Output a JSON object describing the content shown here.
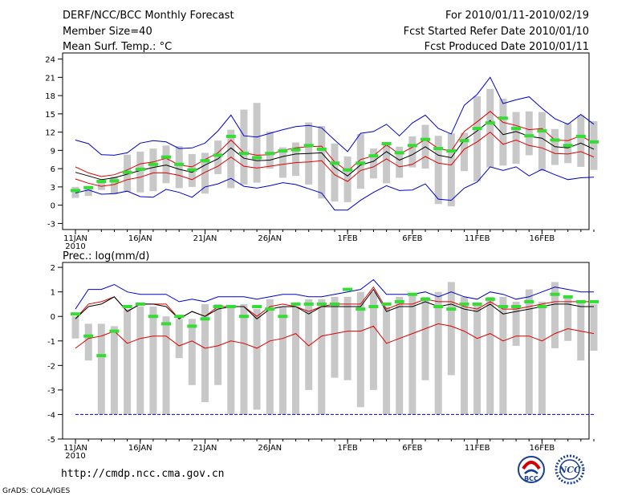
{
  "header": {
    "title": "DERF/NCC/BCC Monthly Forecast",
    "member_size": "Member Size=40",
    "variable": "Mean Surf. Temp.: °C",
    "period": "For 2010/01/11-2010/02/19",
    "fcst_started": "Fcst Started Refer Date 2010/01/10",
    "fcst_produced": "Fcst Produced Date 2010/01/11"
  },
  "footer": {
    "url": "http://cmdp.ncc.cma.gov.cn",
    "grads": "GrADS: COLA/IGES",
    "logo_bcc": "BCC",
    "logo_ncc": "NCC"
  },
  "colors": {
    "mean": "#000000",
    "spread": "#dd0000",
    "envelope": "#0000cc",
    "member_box": "#c8c8c8",
    "observed": "#33dd33"
  },
  "chart_data": [
    {
      "type": "line",
      "title": "Mean Surf. Temp.: °C",
      "x_tick_labels": [
        "11JAN",
        "16JAN",
        "21JAN",
        "26JAN",
        "1FEB",
        "6FEB",
        "11FEB",
        "16FEB"
      ],
      "x_tick_days": [
        0,
        5,
        10,
        15,
        21,
        26,
        31,
        36
      ],
      "year_label": "2010",
      "ylim": [
        -4,
        25
      ],
      "yticks": [
        -3,
        0,
        3,
        6,
        9,
        12,
        15,
        18,
        21,
        24
      ],
      "ytick_labels": [
        "-3",
        "0",
        "3",
        "6",
        "9",
        "12",
        "15",
        "18",
        "21",
        "24"
      ],
      "series": [
        {
          "name": "ensemble max",
          "values": [
            10.7,
            10.1,
            8.3,
            8.2,
            8.6,
            10.2,
            10.6,
            10.4,
            9.3,
            9.4,
            10.2,
            12.2,
            14.8,
            11.4,
            11.2,
            11.8,
            12.4,
            12.9,
            13.1,
            12.7,
            10.7,
            8.8,
            11.8,
            12.1,
            13.3,
            11.4,
            13.5,
            14.8,
            12.6,
            11.7,
            16.4,
            18.2,
            21.0,
            16.7,
            17.3,
            17.8,
            15.9,
            14.2,
            13.3,
            14.9,
            13.3
          ]
        },
        {
          "name": "mean + spread",
          "values": [
            6.3,
            5.3,
            4.7,
            5.0,
            5.8,
            6.8,
            7.1,
            7.7,
            6.6,
            6.3,
            7.5,
            8.6,
            10.7,
            8.6,
            8.2,
            8.3,
            9.0,
            9.4,
            9.6,
            9.7,
            7.1,
            5.6,
            7.5,
            8.1,
            9.9,
            8.4,
            9.5,
            10.8,
            9.3,
            8.9,
            12.1,
            13.7,
            15.4,
            13.6,
            13.1,
            12.4,
            12.6,
            10.7,
            10.6,
            11.4,
            10.2
          ]
        },
        {
          "name": "ensemble mean",
          "values": [
            5.4,
            4.8,
            4.2,
            4.5,
            5.1,
            5.7,
            6.2,
            6.6,
            5.9,
            5.4,
            6.6,
            7.6,
            9.4,
            7.7,
            7.3,
            7.4,
            8.0,
            8.4,
            8.5,
            8.6,
            6.2,
            4.8,
            6.6,
            7.2,
            8.8,
            7.4,
            8.3,
            9.6,
            8.2,
            7.8,
            10.7,
            12.2,
            13.9,
            11.6,
            12.1,
            11.3,
            11.0,
            9.6,
            9.4,
            10.2,
            9.2
          ]
        },
        {
          "name": "mean - spread",
          "values": [
            4.3,
            3.6,
            3.1,
            3.4,
            4.2,
            4.6,
            5.3,
            5.3,
            4.9,
            4.2,
            5.4,
            6.4,
            7.9,
            6.4,
            6.1,
            6.4,
            6.7,
            7.0,
            7.1,
            7.3,
            5.0,
            3.9,
            5.7,
            6.3,
            7.6,
            6.3,
            6.7,
            8.0,
            6.9,
            6.6,
            9.2,
            10.4,
            12.0,
            10.0,
            10.7,
            9.8,
            9.4,
            8.5,
            8.4,
            8.8,
            7.9
          ]
        },
        {
          "name": "ensemble min",
          "values": [
            2.0,
            2.5,
            1.8,
            1.9,
            2.3,
            1.4,
            1.3,
            2.6,
            2.1,
            1.3,
            3.0,
            3.5,
            4.4,
            3.1,
            2.8,
            3.2,
            3.7,
            3.4,
            2.7,
            2.0,
            -0.8,
            -0.8,
            0.8,
            2.1,
            3.2,
            2.4,
            2.5,
            3.5,
            1.0,
            0.8,
            2.8,
            3.8,
            6.3,
            5.7,
            6.3,
            4.8,
            5.9,
            5.0,
            4.2,
            4.5,
            4.6
          ]
        }
      ],
      "member_boxes": {
        "low": [
          1.2,
          1.5,
          2.5,
          1.8,
          2.2,
          2.1,
          2.3,
          3.6,
          2.8,
          3.0,
          1.9,
          5.1,
          2.8,
          3.4,
          3.7,
          6.0,
          4.5,
          4.8,
          3.4,
          1.1,
          0.6,
          0.5,
          2.7,
          4.4,
          3.6,
          4.5,
          6.2,
          6.0,
          0.2,
          -0.2,
          5.6,
          3.9,
          6.2,
          6.5,
          6.8,
          8.2,
          5.6,
          6.6,
          6.9,
          6.3,
          5.8
        ],
        "high": [
          3.0,
          3.1,
          4.2,
          4.7,
          8.3,
          8.8,
          9.3,
          9.8,
          9.7,
          8.4,
          8.6,
          10.6,
          12.4,
          15.7,
          16.8,
          12.1,
          9.5,
          10.3,
          13.6,
          13.0,
          10.1,
          8.0,
          11.7,
          9.3,
          10.2,
          9.6,
          11.3,
          13.2,
          11.4,
          11.8,
          11.9,
          17.9,
          19.1,
          17.5,
          15.3,
          15.4,
          15.3,
          12.5,
          13.5,
          14.8,
          13.8
        ]
      },
      "observed": [
        2.4,
        2.9,
        3.9,
        4.0,
        5.4,
        5.9,
        6.7,
        7.9,
        6.7,
        5.8,
        7.3,
        8.2,
        11.3,
        8.5,
        7.8,
        8.5,
        8.9,
        9.1,
        9.8,
        9.2,
        6.9,
        5.8,
        6.9,
        8.1,
        10.1,
        8.6,
        9.8,
        10.8,
        9.3,
        8.9,
        10.6,
        12.6,
        13.5,
        14.3,
        12.6,
        11.4,
        12.2,
        10.7,
        9.8,
        11.3,
        10.4
      ]
    },
    {
      "type": "line",
      "title": "Prec.: log(mm/d)",
      "x_tick_labels": [
        "11JAN",
        "16JAN",
        "21JAN",
        "26JAN",
        "1FEB",
        "6FEB",
        "11FEB",
        "16FEB"
      ],
      "x_tick_days": [
        0,
        5,
        10,
        15,
        21,
        26,
        31,
        36
      ],
      "year_label": "2010",
      "ylim": [
        -5,
        2.2
      ],
      "yticks": [
        -5,
        -4,
        -3,
        -2,
        -1,
        0,
        1,
        2
      ],
      "ytick_labels": [
        "-5",
        "-4",
        "-3",
        "-2",
        "-1",
        "0",
        "1",
        "2"
      ],
      "series": [
        {
          "name": "ensemble max",
          "values": [
            0.3,
            1.1,
            1.1,
            1.3,
            1.0,
            0.9,
            0.9,
            0.9,
            0.6,
            0.7,
            0.6,
            0.8,
            0.8,
            0.8,
            0.7,
            0.8,
            0.9,
            0.9,
            0.8,
            0.8,
            0.9,
            1.0,
            1.1,
            1.5,
            0.9,
            0.9,
            0.9,
            1.0,
            0.8,
            1.0,
            0.8,
            0.7,
            1.0,
            0.9,
            0.7,
            0.8,
            1.0,
            1.2,
            1.1,
            1.0,
            1.0
          ]
        },
        {
          "name": "mean + spread",
          "values": [
            -0.1,
            0.5,
            0.6,
            0.8,
            0.2,
            0.5,
            0.5,
            0.5,
            -0.1,
            0.2,
            0.0,
            0.4,
            0.4,
            0.4,
            0.0,
            0.4,
            0.5,
            0.4,
            0.2,
            0.4,
            0.5,
            0.5,
            0.5,
            1.2,
            0.3,
            0.5,
            0.5,
            0.7,
            0.6,
            0.6,
            0.4,
            0.3,
            0.6,
            0.3,
            0.3,
            0.4,
            0.5,
            0.6,
            0.6,
            0.6,
            0.6
          ]
        },
        {
          "name": "ensemble mean",
          "values": [
            -0.1,
            0.4,
            0.5,
            0.8,
            0.2,
            0.5,
            0.5,
            0.4,
            -0.1,
            0.2,
            0.0,
            0.3,
            0.4,
            0.4,
            -0.1,
            0.3,
            0.4,
            0.4,
            0.1,
            0.4,
            0.4,
            0.4,
            0.4,
            1.1,
            0.2,
            0.4,
            0.4,
            0.6,
            0.4,
            0.5,
            0.3,
            0.2,
            0.5,
            0.1,
            0.2,
            0.3,
            0.4,
            0.5,
            0.5,
            0.4,
            0.4
          ]
        },
        {
          "name": "mean - spread",
          "values": [
            -1.3,
            -0.9,
            -0.8,
            -0.6,
            -1.1,
            -0.9,
            -0.8,
            -0.8,
            -1.2,
            -1.0,
            -1.3,
            -1.2,
            -1.0,
            -1.1,
            -1.3,
            -1.0,
            -0.9,
            -0.7,
            -1.2,
            -0.8,
            -0.7,
            -0.6,
            -0.6,
            -0.4,
            -1.1,
            -0.9,
            -0.7,
            -0.5,
            -0.3,
            -0.4,
            -0.6,
            -0.9,
            -0.7,
            -1.0,
            -0.8,
            -0.8,
            -1.0,
            -0.7,
            -0.5,
            -0.6,
            -0.7
          ]
        },
        {
          "name": "minimum line",
          "values": [
            -4,
            -4,
            -4,
            -4,
            -4,
            -4,
            -4,
            -4,
            -4,
            -4,
            -4,
            -4,
            -4,
            -4,
            -4,
            -4,
            -4,
            -4,
            -4,
            -4,
            -4,
            -4,
            -4,
            -4,
            -4,
            -4,
            -4,
            -4,
            -4,
            -4,
            -4,
            -4,
            -4,
            -4,
            -4,
            -4,
            -4,
            -4,
            -4,
            -4,
            -4
          ]
        }
      ],
      "member_boxes": {
        "low": [
          -0.9,
          -1.8,
          -4.0,
          -4.0,
          -4.0,
          -4.0,
          -4.0,
          -4.0,
          -1.7,
          -2.8,
          -3.5,
          -2.8,
          -4.0,
          -4.0,
          -3.8,
          -4.0,
          -4.0,
          -4.0,
          -3.0,
          -4.0,
          -2.5,
          -2.6,
          -3.7,
          -3.0,
          -4.0,
          -4.0,
          -4.0,
          -2.6,
          -4.0,
          -2.4,
          -4.0,
          -4.0,
          -4.0,
          -4.0,
          -1.2,
          -4.0,
          -4.0,
          -1.3,
          -1.0,
          -1.8,
          -1.4
        ],
        "high": [
          0.0,
          -0.3,
          -0.3,
          -0.4,
          0.3,
          0.4,
          0.4,
          0.0,
          -0.1,
          -0.1,
          0.5,
          0.5,
          0.4,
          0.5,
          0.3,
          0.7,
          0.4,
          0.4,
          0.7,
          0.7,
          0.8,
          0.8,
          1.0,
          1.0,
          0.4,
          0.8,
          0.9,
          0.8,
          1.0,
          1.4,
          0.8,
          0.5,
          0.8,
          0.8,
          0.6,
          1.1,
          0.6,
          1.4,
          0.8,
          0.6,
          0.5
        ]
      },
      "observed": [
        0.1,
        -0.8,
        -1.6,
        -0.6,
        0.4,
        0.5,
        0.0,
        -0.3,
        0.0,
        -0.4,
        -0.1,
        0.4,
        0.4,
        0.0,
        0.4,
        0.3,
        0.0,
        0.5,
        0.5,
        0.5,
        0.5,
        1.1,
        0.3,
        0.4,
        0.5,
        0.6,
        0.9,
        0.7,
        0.4,
        0.3,
        0.5,
        0.5,
        0.7,
        0.4,
        0.4,
        0.6,
        0.4,
        0.9,
        0.8,
        0.6,
        0.6
      ]
    }
  ]
}
